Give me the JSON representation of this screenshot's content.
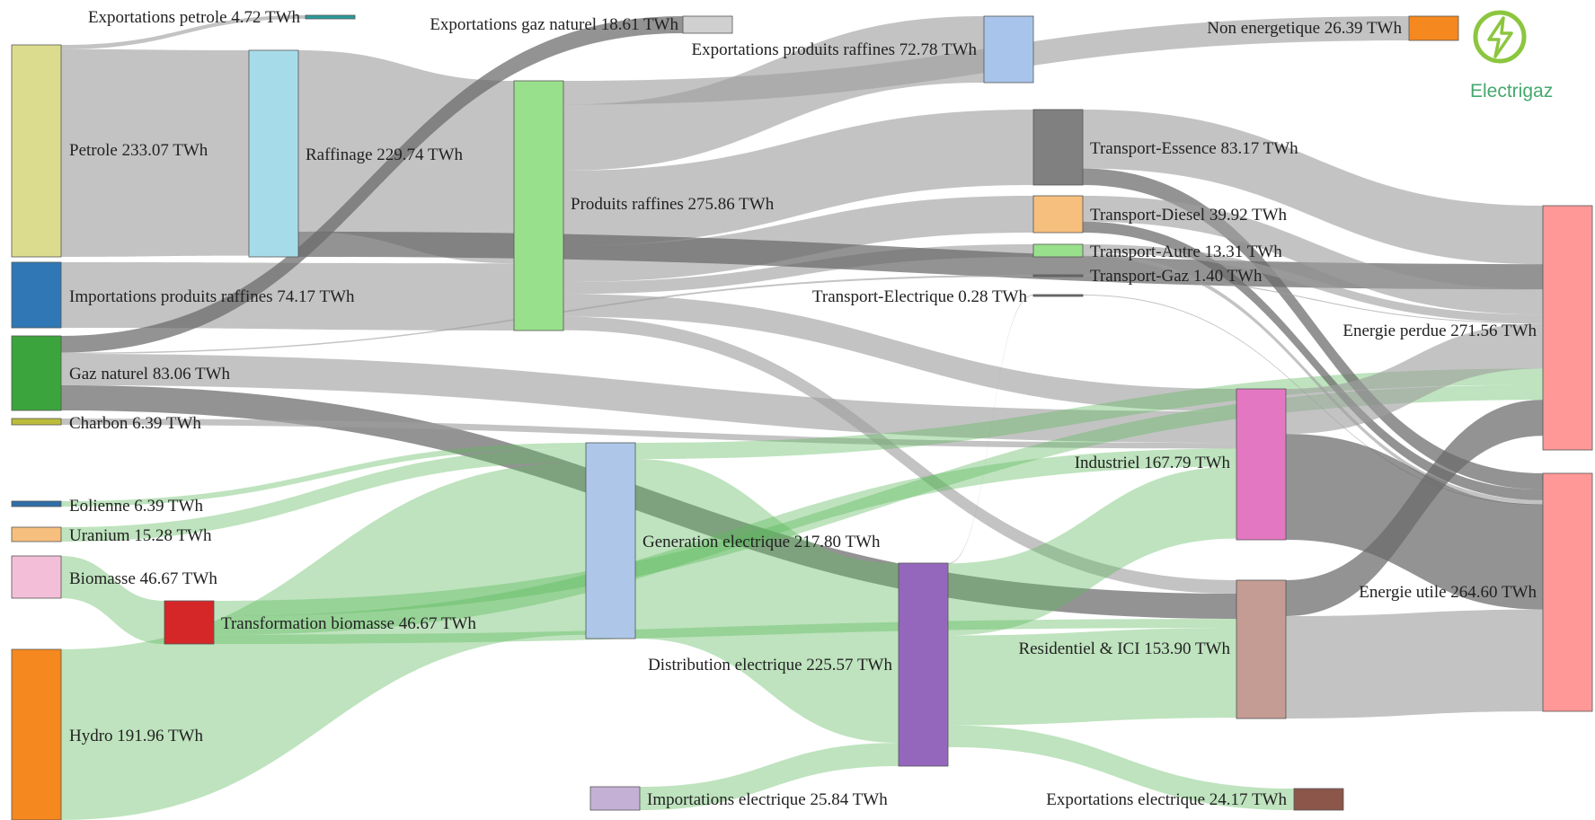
{
  "brand": {
    "name": "Electrigaz",
    "color": "#7cc24e",
    "text_color": "#45a86e",
    "icon": "lightning-bolt-icon"
  },
  "colors": {
    "gray_flow": "#9e9e9e",
    "dark_gray_flow": "#6a6a6a",
    "green_flow": "#5cba5c"
  },
  "nodes": [
    {
      "id": "exp_petrole",
      "label": "Exportations petrole 4.72 TWh",
      "color": "#2b9a9a",
      "value": 4.72
    },
    {
      "id": "exp_gaz",
      "label": "Exportations gaz naturel 18.61 TWh",
      "color": "#d0d0d0",
      "value": 18.61
    },
    {
      "id": "exp_raffines",
      "label": "Exportations produits raffines 72.78 TWh",
      "color": "#a9c4ea",
      "value": 72.78
    },
    {
      "id": "non_energ",
      "label": "Non energetique 26.39 TWh",
      "color": "#f5881f",
      "value": 26.39
    },
    {
      "id": "petrole",
      "label": "Petrole 233.07 TWh",
      "color": "#dcdc8e",
      "value": 233.07
    },
    {
      "id": "raffinage",
      "label": "Raffinage 229.74 TWh",
      "color": "#a6dcea",
      "value": 229.74
    },
    {
      "id": "produits",
      "label": "Produits raffines 275.86 TWh",
      "color": "#99e08c",
      "value": 275.86
    },
    {
      "id": "tr_essence",
      "label": "Transport-Essence 83.17 TWh",
      "color": "#808080",
      "value": 83.17
    },
    {
      "id": "tr_diesel",
      "label": "Transport-Diesel 39.92 TWh",
      "color": "#f6bf7e",
      "value": 39.92
    },
    {
      "id": "tr_autre",
      "label": "Transport-Autre 13.31 TWh",
      "color": "#99e08c",
      "value": 13.31
    },
    {
      "id": "tr_gaz",
      "label": "Transport-Gaz 1.40 TWh",
      "color": "#707070",
      "value": 1.4
    },
    {
      "id": "tr_elec",
      "label": "Transport-Electrique 0.28 TWh",
      "color": "#707070",
      "value": 0.28
    },
    {
      "id": "imp_raffines",
      "label": "Importations produits raffines 74.17 TWh",
      "color": "#2f78b5",
      "value": 74.17
    },
    {
      "id": "gaz",
      "label": "Gaz naturel 83.06 TWh",
      "color": "#3ca43c",
      "value": 83.06
    },
    {
      "id": "charbon",
      "label": "Charbon 6.39 TWh",
      "color": "#bcbc3c",
      "value": 6.39
    },
    {
      "id": "eolienne",
      "label": "Eolienne 6.39 TWh",
      "color": "#2f6ea8",
      "value": 6.39
    },
    {
      "id": "uranium",
      "label": "Uranium 15.28 TWh",
      "color": "#f6bf7e",
      "value": 15.28
    },
    {
      "id": "biomasse",
      "label": "Biomasse 46.67 TWh",
      "color": "#f3bfd8",
      "value": 46.67
    },
    {
      "id": "hydro",
      "label": "Hydro 191.96 TWh",
      "color": "#f5881f",
      "value": 191.96
    },
    {
      "id": "transfo",
      "label": "Transformation biomasse 46.67 TWh",
      "color": "#d62728",
      "value": 46.67
    },
    {
      "id": "generation",
      "label": "Generation electrique 217.80 TWh",
      "color": "#aec7e8",
      "value": 217.8
    },
    {
      "id": "distribution",
      "label": "Distribution electrique 225.57 TWh",
      "color": "#9467bd",
      "value": 225.57
    },
    {
      "id": "industriel",
      "label": "Industriel 167.79 TWh",
      "color": "#e377c2",
      "value": 167.79
    },
    {
      "id": "residentiel",
      "label": "Residentiel & ICI 153.90 TWh",
      "color": "#c49c94",
      "value": 153.9
    },
    {
      "id": "perdue",
      "label": "Energie perdue 271.56 TWh",
      "color": "#ff9896",
      "value": 271.56
    },
    {
      "id": "utile",
      "label": "Energie utile 264.60 TWh",
      "color": "#ff9896",
      "value": 264.6
    },
    {
      "id": "imp_elec",
      "label": "Importations electrique 25.84 TWh",
      "color": "#c5b0d5",
      "value": 25.84
    },
    {
      "id": "exp_elec",
      "label": "Exportations electrique 24.17 TWh",
      "color": "#8c564b",
      "value": 24.17
    }
  ],
  "links": [
    {
      "source": "petrole",
      "target": "raffinage",
      "value": 228.35,
      "color": "gray"
    },
    {
      "source": "petrole",
      "target": "exp_petrole",
      "value": 4.72,
      "color": "gray"
    },
    {
      "source": "raffinage",
      "target": "produits",
      "value": 201.69,
      "color": "gray"
    },
    {
      "source": "imp_raffines",
      "target": "produits",
      "value": 74.17,
      "color": "gray"
    },
    {
      "source": "produits",
      "target": "exp_raffines",
      "value": 72.78,
      "color": "gray"
    },
    {
      "source": "produits",
      "target": "non_energ",
      "value": 26.39,
      "color": "gray"
    },
    {
      "source": "produits",
      "target": "tr_essence",
      "value": 83.17,
      "color": "gray"
    },
    {
      "source": "produits",
      "target": "tr_diesel",
      "value": 39.92,
      "color": "gray"
    },
    {
      "source": "produits",
      "target": "tr_autre",
      "value": 13.31,
      "color": "gray"
    },
    {
      "source": "produits",
      "target": "industriel",
      "value": 25.0,
      "color": "gray"
    },
    {
      "source": "produits",
      "target": "residentiel",
      "value": 15.0,
      "color": "gray"
    },
    {
      "source": "raffinage",
      "target": "perdue",
      "value": 28.05,
      "color": "dark"
    },
    {
      "source": "gaz",
      "target": "exp_gaz",
      "value": 18.61,
      "color": "dark"
    },
    {
      "source": "gaz",
      "target": "industriel",
      "value": 35.0,
      "color": "gray"
    },
    {
      "source": "gaz",
      "target": "residentiel",
      "value": 28.05,
      "color": "dark"
    },
    {
      "source": "gaz",
      "target": "tr_gaz",
      "value": 1.4,
      "color": "gray"
    },
    {
      "source": "charbon",
      "target": "industriel",
      "value": 6.39,
      "color": "gray"
    },
    {
      "source": "eolienne",
      "target": "generation",
      "value": 6.39,
      "color": "green"
    },
    {
      "source": "uranium",
      "target": "generation",
      "value": 15.28,
      "color": "green"
    },
    {
      "source": "biomasse",
      "target": "transfo",
      "value": 46.67,
      "color": "green"
    },
    {
      "source": "hydro",
      "target": "generation",
      "value": 191.96,
      "color": "green"
    },
    {
      "source": "transfo",
      "target": "industriel",
      "value": 20.0,
      "color": "green"
    },
    {
      "source": "transfo",
      "target": "residentiel",
      "value": 10.0,
      "color": "green"
    },
    {
      "source": "transfo",
      "target": "perdue",
      "value": 16.67,
      "color": "green"
    },
    {
      "source": "generation",
      "target": "distribution",
      "value": 199.73,
      "color": "green"
    },
    {
      "source": "generation",
      "target": "perdue",
      "value": 18.07,
      "color": "green"
    },
    {
      "source": "imp_elec",
      "target": "distribution",
      "value": 25.84,
      "color": "green"
    },
    {
      "source": "distribution",
      "target": "exp_elec",
      "value": 24.17,
      "color": "green"
    },
    {
      "source": "distribution",
      "target": "industriel",
      "value": 80.0,
      "color": "green"
    },
    {
      "source": "distribution",
      "target": "residentiel",
      "value": 100.0,
      "color": "green"
    },
    {
      "source": "distribution",
      "target": "tr_elec",
      "value": 0.28,
      "color": "gray"
    },
    {
      "source": "tr_essence",
      "target": "perdue",
      "value": 65.0,
      "color": "gray"
    },
    {
      "source": "tr_essence",
      "target": "utile",
      "value": 18.17,
      "color": "dark"
    },
    {
      "source": "tr_diesel",
      "target": "perdue",
      "value": 28.0,
      "color": "gray"
    },
    {
      "source": "tr_diesel",
      "target": "utile",
      "value": 11.92,
      "color": "dark"
    },
    {
      "source": "tr_autre",
      "target": "perdue",
      "value": 9.0,
      "color": "gray"
    },
    {
      "source": "tr_autre",
      "target": "utile",
      "value": 4.31,
      "color": "gray"
    },
    {
      "source": "tr_gaz",
      "target": "perdue",
      "value": 1.0,
      "color": "gray"
    },
    {
      "source": "tr_elec",
      "target": "utile",
      "value": 0.28,
      "color": "gray"
    },
    {
      "source": "industriel",
      "target": "perdue",
      "value": 50.0,
      "color": "gray"
    },
    {
      "source": "industriel",
      "target": "utile",
      "value": 117.79,
      "color": "dark"
    },
    {
      "source": "residentiel",
      "target": "perdue",
      "value": 40.0,
      "color": "dark"
    },
    {
      "source": "residentiel",
      "target": "utile",
      "value": 113.9,
      "color": "gray"
    }
  ]
}
